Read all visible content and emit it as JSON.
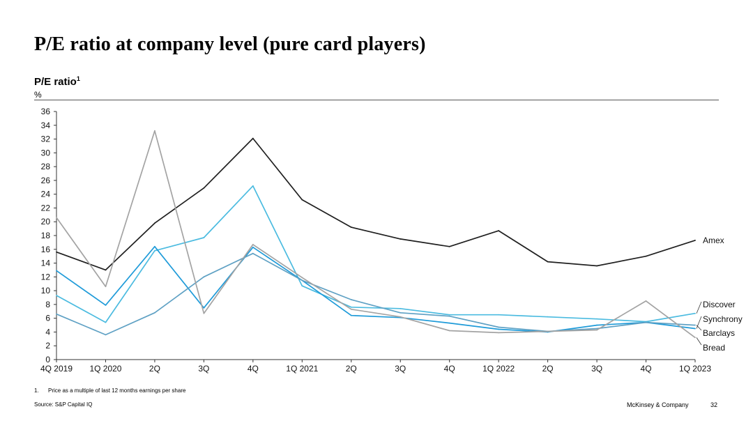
{
  "header": {
    "title": "P/E ratio at company level (pure card players)",
    "subtitle": "P/E ratio",
    "subtitle_sup": "1",
    "unit": "%"
  },
  "footer": {
    "footnote_num": "1.",
    "footnote_text": "Price as a multiple of last 12 months earnings per share",
    "source": "Source: S&P Capital IQ",
    "brand": "McKinsey & Company",
    "page": "32"
  },
  "chart_data": {
    "type": "line",
    "title": "P/E ratio",
    "ylabel": "%",
    "xlabel": "",
    "ylim": [
      0,
      36
    ],
    "yticks": [
      0,
      2,
      4,
      6,
      8,
      10,
      12,
      14,
      16,
      18,
      20,
      22,
      24,
      26,
      28,
      30,
      32,
      34,
      36
    ],
    "grid": false,
    "categories": [
      "4Q 2019",
      "1Q 2020",
      "2Q",
      "3Q",
      "4Q",
      "1Q 2021",
      "2Q",
      "3Q",
      "4Q",
      "1Q 2022",
      "2Q",
      "3Q",
      "4Q",
      "1Q 2023"
    ],
    "series": [
      {
        "name": "Amex",
        "color": "#1f1f1f",
        "values": [
          15.6,
          13.0,
          19.8,
          24.9,
          32.1,
          23.2,
          19.2,
          17.5,
          16.4,
          18.7,
          14.2,
          13.6,
          15.0,
          17.3
        ]
      },
      {
        "name": "Discover",
        "color": "#4bbbe0",
        "values": [
          9.3,
          5.4,
          15.8,
          17.7,
          25.2,
          10.7,
          7.6,
          7.4,
          6.5,
          6.5,
          6.2,
          5.9,
          5.5,
          6.7
        ]
      },
      {
        "name": "Synchrony",
        "color": "#1f9bd9",
        "values": [
          12.9,
          7.9,
          16.4,
          7.5,
          16.3,
          11.5,
          6.4,
          6.1,
          5.3,
          4.4,
          4.0,
          5.0,
          5.4,
          4.5
        ]
      },
      {
        "name": "Barclays",
        "color": "#5fa1c4",
        "values": [
          6.6,
          3.6,
          6.8,
          12.0,
          15.4,
          11.5,
          8.7,
          6.8,
          6.3,
          4.7,
          4.1,
          4.5,
          5.4,
          5.0
        ]
      },
      {
        "name": "Bread",
        "color": "#a3a3a3",
        "values": [
          20.6,
          10.6,
          33.2,
          6.7,
          16.7,
          11.9,
          7.3,
          6.2,
          4.2,
          3.9,
          4.1,
          4.3,
          8.5,
          3.2
        ]
      }
    ],
    "labels": {
      "Amex": "Amex",
      "Discover": "Discover",
      "Synchrony": "Synchrony",
      "Barclays": "Barclays",
      "Bread": "Bread"
    }
  }
}
